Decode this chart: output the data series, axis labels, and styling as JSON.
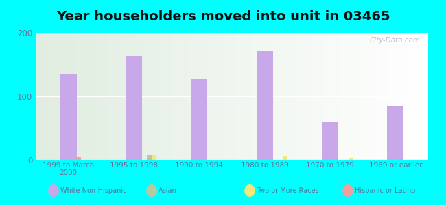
{
  "title": "Year householders moved into unit in 03465",
  "categories": [
    "1999 to March\n2000",
    "1995 to 1998",
    "1990 to 1994",
    "1980 to 1989",
    "1970 to 1979",
    "1969 or earlier"
  ],
  "white_non_hispanic": [
    135,
    163,
    128,
    172,
    60,
    85
  ],
  "asian": [
    0,
    7,
    0,
    0,
    0,
    0
  ],
  "two_or_more": [
    0,
    7,
    0,
    5,
    3,
    0
  ],
  "hispanic": [
    4,
    0,
    0,
    0,
    0,
    0
  ],
  "bar_color_white": "#c8a8e8",
  "bar_color_asian": "#b8c8a0",
  "bar_color_two": "#f0e878",
  "bar_color_hispanic": "#f0a0a0",
  "bg_outer": "#00ffff",
  "ylim": [
    0,
    200
  ],
  "yticks": [
    0,
    100,
    200
  ],
  "legend_labels": [
    "White Non-Hispanic",
    "Asian",
    "Two or More Races",
    "Hispanic or Latino"
  ],
  "legend_colors": [
    "#c8a8e8",
    "#b8c8a0",
    "#f0e878",
    "#f0a0a0"
  ],
  "watermark": "City-Data.com",
  "title_fontsize": 14,
  "bar_width": 0.25
}
